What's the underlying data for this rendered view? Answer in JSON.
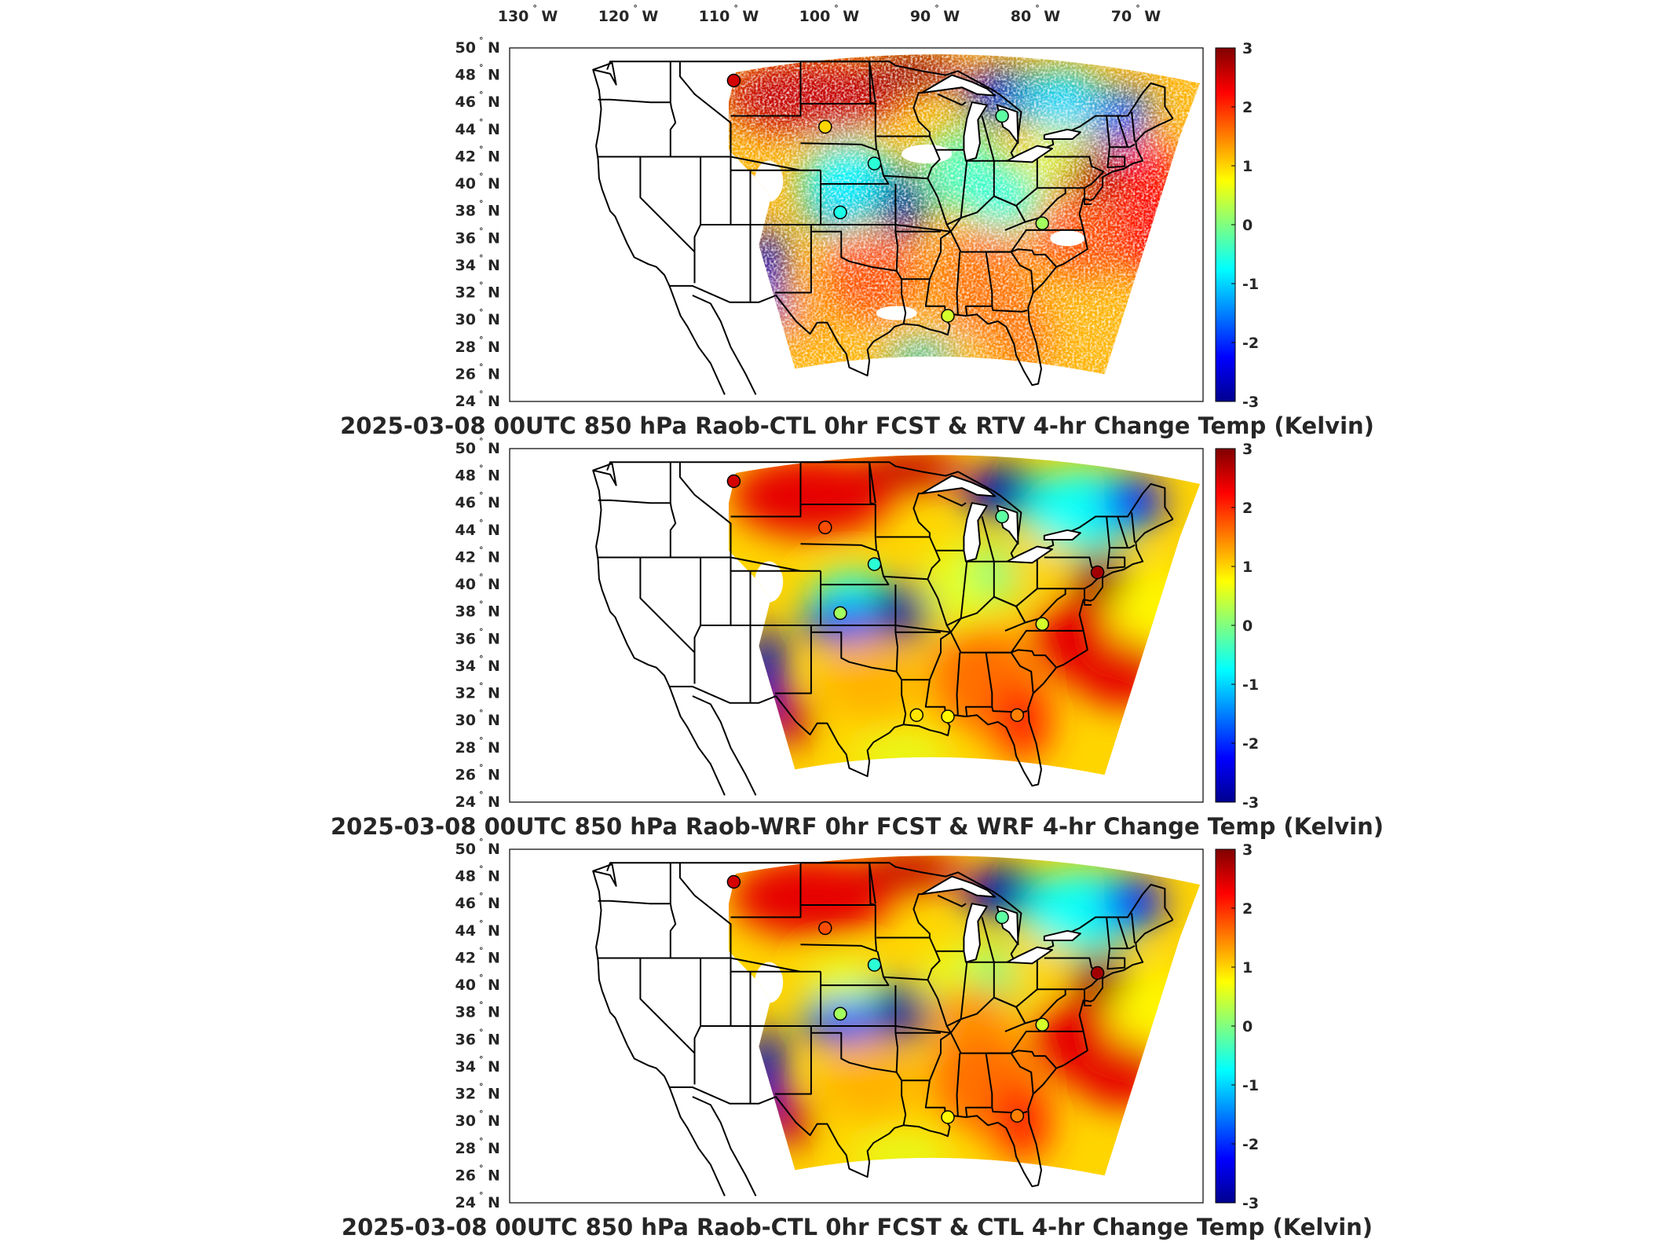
{
  "lon_ticks": [
    "130",
    "120",
    "110",
    "100",
    "90",
    "80",
    "70"
  ],
  "lon_suffix": "W",
  "lat_ticks": [
    "50",
    "48",
    "46",
    "44",
    "42",
    "40",
    "38",
    "36",
    "34",
    "32",
    "30",
    "28",
    "26",
    "24"
  ],
  "lat_suffix": "N",
  "colorbar": {
    "ticks": [
      "3",
      "2",
      "1",
      "0",
      "-1",
      "-2",
      "-3"
    ],
    "range": [
      -3,
      3
    ],
    "colormap": [
      "#00008f",
      "#0000ff",
      "#0080ff",
      "#00ffff",
      "#80ff80",
      "#ffff00",
      "#ff8000",
      "#ff0000",
      "#800000"
    ]
  },
  "panels": [
    {
      "title": "2025-03-08 00UTC 850 hPa Raob-CTL 0hr FCST & RTV 4-hr Change Temp (Kelvin)",
      "variant": "rtv",
      "stations": [
        {
          "lon": -110.7,
          "lat": 47.6,
          "value": 2.5
        },
        {
          "lon": -101.6,
          "lat": 44.2,
          "value": 1.0
        },
        {
          "lon": -96.7,
          "lat": 41.5,
          "value": -0.5
        },
        {
          "lon": -100.1,
          "lat": 37.9,
          "value": -0.6
        },
        {
          "lon": -84.0,
          "lat": 45.0,
          "value": -0.2
        },
        {
          "lon": -80.0,
          "lat": 37.1,
          "value": 0.2
        },
        {
          "lon": -89.4,
          "lat": 30.3,
          "value": 0.5
        }
      ]
    },
    {
      "title": "2025-03-08 00UTC 850 hPa Raob-WRF 0hr FCST & WRF 4-hr Change Temp (Kelvin)",
      "variant": "wrf",
      "stations": [
        {
          "lon": -110.7,
          "lat": 47.6,
          "value": 2.5
        },
        {
          "lon": -101.6,
          "lat": 44.2,
          "value": 1.8
        },
        {
          "lon": -96.7,
          "lat": 41.5,
          "value": -0.5
        },
        {
          "lon": -100.1,
          "lat": 37.9,
          "value": 0.2
        },
        {
          "lon": -84.0,
          "lat": 45.0,
          "value": -0.2
        },
        {
          "lon": -80.0,
          "lat": 37.1,
          "value": 0.5
        },
        {
          "lon": -89.4,
          "lat": 30.3,
          "value": 0.8
        },
        {
          "lon": -92.5,
          "lat": 30.4,
          "value": 0.9
        },
        {
          "lon": -82.5,
          "lat": 30.4,
          "value": 1.5
        },
        {
          "lon": -74.5,
          "lat": 40.9,
          "value": 2.8
        }
      ]
    },
    {
      "title": "2025-03-08 00UTC 850 hPa Raob-CTL 0hr FCST & CTL 4-hr Change Temp (Kelvin)",
      "variant": "ctl",
      "stations": [
        {
          "lon": -110.7,
          "lat": 47.6,
          "value": 2.5
        },
        {
          "lon": -101.6,
          "lat": 44.2,
          "value": 1.8
        },
        {
          "lon": -96.7,
          "lat": 41.5,
          "value": -0.5
        },
        {
          "lon": -100.1,
          "lat": 37.9,
          "value": 0.2
        },
        {
          "lon": -84.0,
          "lat": 45.0,
          "value": -0.2
        },
        {
          "lon": -80.0,
          "lat": 37.1,
          "value": 0.5
        },
        {
          "lon": -89.4,
          "lat": 30.3,
          "value": 0.8
        },
        {
          "lon": -82.5,
          "lat": 30.4,
          "value": 1.5
        },
        {
          "lon": -74.5,
          "lat": 40.9,
          "value": 2.8
        }
      ]
    }
  ]
}
